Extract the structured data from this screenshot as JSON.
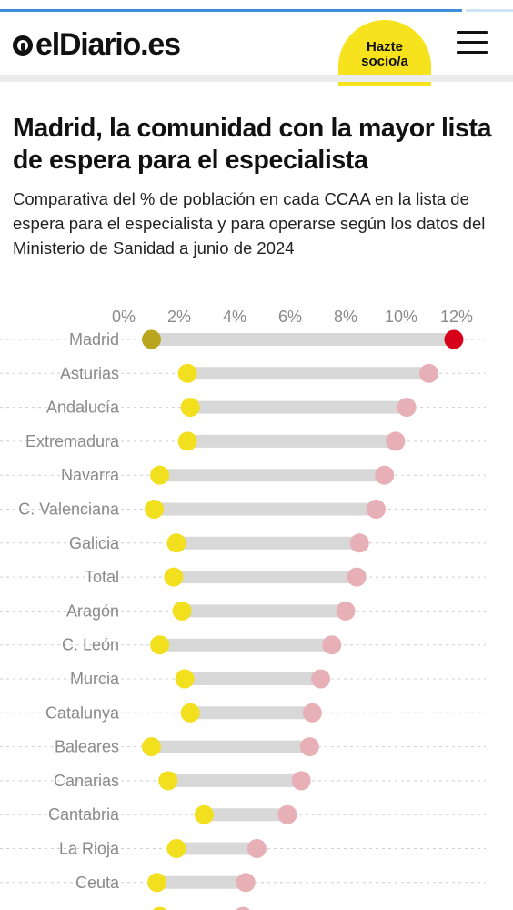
{
  "site": {
    "logo_text": "elDiario.es",
    "member_button": "Hazte socio/a",
    "reading_progress": 0.9
  },
  "colors": {
    "accent_yellow": "#f2df1e",
    "madrid_highlight_left": "#b9a61e",
    "madrid_highlight_right": "#d7001a",
    "right_dot": "#e6b0b6",
    "connector": "#d8d8d8",
    "brand_yellow": "#f6e31d"
  },
  "article": {
    "title": "Madrid, la comunidad con la mayor lista de espera para el especialista",
    "subtitle": "Comparativa del % de población en cada CCAA en la lista de espera para el especialista y para operarse según los datos del Ministerio de Sanidad a junio de 2024"
  },
  "chart_data": {
    "type": "dot-range",
    "xlim": [
      0,
      12
    ],
    "xticks": [
      "0%",
      "2%",
      "4%",
      "6%",
      "8%",
      "10%",
      "12%"
    ],
    "grid": "dotted row guides",
    "legend": "none",
    "categories": [
      "Madrid",
      "Asturias",
      "Andalucía",
      "Extremadura",
      "Navarra",
      "C. Valenciana",
      "Galicia",
      "Total",
      "Aragón",
      "C. León",
      "Murcia",
      "Catalunya",
      "Baleares",
      "Canarias",
      "Cantabria",
      "La Rioja",
      "Ceuta",
      ""
    ],
    "series": [
      {
        "values": [
          1.0,
          2.3,
          2.4,
          2.3,
          1.3,
          1.1,
          1.9,
          1.8,
          2.1,
          1.3,
          2.2,
          2.4,
          1.0,
          1.6,
          2.9,
          1.9,
          1.2,
          1.3
        ]
      },
      {
        "values": [
          11.9,
          11.0,
          10.2,
          9.8,
          9.4,
          9.1,
          8.5,
          8.4,
          8.0,
          7.5,
          7.1,
          6.8,
          6.7,
          6.4,
          5.9,
          4.8,
          4.4,
          4.3
        ]
      }
    ],
    "highlight": "Madrid"
  }
}
